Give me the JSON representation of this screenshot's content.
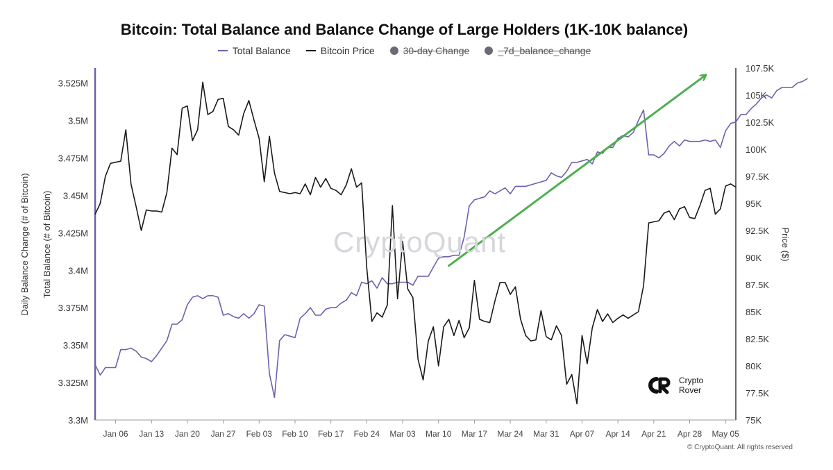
{
  "title": "Bitcoin: Total Balance and Balance Change of Large Holders (1K-10K balance)",
  "legend": [
    {
      "label": "Total Balance",
      "marker": "line",
      "color": "#6f5fb0",
      "active": true
    },
    {
      "label": "Bitcoin Price",
      "marker": "line",
      "color": "#1a1a1a",
      "active": true
    },
    {
      "label": "30-day Change",
      "marker": "dot",
      "color": "#6b6b78",
      "active": false
    },
    {
      "label": "_7d_balance_change",
      "marker": "dot",
      "color": "#6b6b78",
      "active": false
    }
  ],
  "watermark": "CryptoQuant",
  "brand": {
    "name": "Crypto\nRover",
    "icon": "cr-logo-icon"
  },
  "copyright": "© CryptoQuant. All rights reserved",
  "chart_data": {
    "type": "line",
    "x_tick_labels": [
      "Jan 06",
      "Jan 13",
      "Jan 20",
      "Jan 27",
      "Feb 03",
      "Feb 10",
      "Feb 17",
      "Feb 24",
      "Mar 03",
      "Mar 10",
      "Mar 17",
      "Mar 24",
      "Mar 31",
      "Apr 07",
      "Apr 14",
      "Apr 21",
      "Apr 28",
      "May 05"
    ],
    "x_range": [
      "Jan 02",
      "May 07"
    ],
    "y_left": {
      "labels": [
        "Daily Balance Change (# of Bitcoin)",
        "Total Balance (# of Bitcoin)"
      ],
      "ticks": [
        "3.525M",
        "3.5M",
        "3.475M",
        "3.45M",
        "3.425M",
        "3.4M",
        "3.375M",
        "3.35M",
        "3.325M",
        "3.3M"
      ],
      "range": [
        3300000,
        3535000
      ],
      "axis_color": "#6f5fb0"
    },
    "y_right": {
      "label": "Price ($)",
      "ticks": [
        "107.5K",
        "105K",
        "102.5K",
        "100K",
        "97.5K",
        "95K",
        "92.5K",
        "90K",
        "87.5K",
        "85K",
        "82.5K",
        "80K",
        "77.5K",
        "75K"
      ],
      "range": [
        75000,
        107500
      ]
    },
    "grid": false,
    "series": [
      {
        "name": "Total Balance",
        "axis": "left",
        "color": "#6f5fb0",
        "start": "Jan 02",
        "step_days": 1,
        "values": [
          3337000,
          3330000,
          3335000,
          3335000,
          3335000,
          3347000,
          3347000,
          3348000,
          3346000,
          3342000,
          3341000,
          3339000,
          3343000,
          3348000,
          3353000,
          3364000,
          3364000,
          3367000,
          3377000,
          3382000,
          3383000,
          3381000,
          3383000,
          3383000,
          3382000,
          3370000,
          3371000,
          3369000,
          3368000,
          3371000,
          3368000,
          3371000,
          3377000,
          3376000,
          3331000,
          3315000,
          3353000,
          3357000,
          3356000,
          3355000,
          3368000,
          3371000,
          3375000,
          3370000,
          3370000,
          3374000,
          3375000,
          3375000,
          3378000,
          3380000,
          3385000,
          3383000,
          3392000,
          3391000,
          3393000,
          3388000,
          3395000,
          3391000,
          3391000,
          3392000,
          3392000,
          3392000,
          3390000,
          3396000,
          3396000,
          3396000,
          3402000,
          3408000,
          3409000,
          3409000,
          3410000,
          3410000,
          3422000,
          3443000,
          3447000,
          3448000,
          3449000,
          3453000,
          3451000,
          3453000,
          3455000,
          3451000,
          3456000,
          3456000,
          3456000,
          3457000,
          3458000,
          3459000,
          3460000,
          3465000,
          3463000,
          3462000,
          3466000,
          3472000,
          3472000,
          3473000,
          3474000,
          3471000,
          3479000,
          3478000,
          3482000,
          3482000,
          3488000,
          3490000,
          3489000,
          3492000,
          3500000,
          3507000,
          3477000,
          3477000,
          3475000,
          3478000,
          3483000,
          3486000,
          3483000,
          3487000,
          3486000,
          3486000,
          3486000,
          3487000,
          3486000,
          3487000,
          3482000,
          3493000,
          3498000,
          3499000,
          3504000,
          3504000,
          3508000,
          3511000,
          3515000,
          3517000,
          3515000,
          3520000,
          3522000,
          3522000,
          3522000,
          3525000,
          3526000,
          3528000
        ]
      },
      {
        "name": "Bitcoin Price",
        "axis": "right",
        "color": "#1a1a1a",
        "start": "Jan 02",
        "step_days": 1,
        "values": [
          94000,
          95000,
          97500,
          98700,
          98800,
          98900,
          101800,
          96800,
          94700,
          92500,
          94400,
          94300,
          94300,
          94200,
          96000,
          100100,
          99500,
          103800,
          104000,
          100800,
          101800,
          106200,
          103200,
          103500,
          104600,
          104700,
          102100,
          101800,
          101300,
          103300,
          104500,
          102700,
          101000,
          97000,
          101200,
          97800,
          96100,
          96000,
          95900,
          96000,
          95900,
          96800,
          95800,
          97400,
          96500,
          97300,
          96400,
          96200,
          95800,
          96700,
          98200,
          96500,
          96900,
          89000,
          84100,
          84900,
          84500,
          85600,
          94800,
          86200,
          91500,
          87100,
          86300,
          80600,
          78700,
          82300,
          83600,
          80000,
          83600,
          84300,
          82800,
          84200,
          82600,
          83500,
          87900,
          84300,
          84100,
          84000,
          86000,
          87700,
          87700,
          86600,
          87300,
          84300,
          82800,
          82300,
          82400,
          85100,
          82700,
          82400,
          83700,
          82800,
          78300,
          79200,
          76500,
          82800,
          80200,
          83500,
          85200,
          84100,
          84800,
          84000,
          84400,
          84700,
          84400,
          84700,
          85000,
          87400,
          93200,
          93300,
          93400,
          94100,
          94300,
          93500,
          94500,
          94700,
          93700,
          93600,
          94800,
          96200,
          96400,
          94000,
          94500,
          96600,
          96800,
          96500
        ]
      }
    ]
  },
  "annotation": {
    "type": "arrow",
    "color": "#4caf50",
    "from": {
      "date": "Mar 12",
      "value": 3403000
    },
    "to": {
      "date": "May 01",
      "value": 3530000
    }
  }
}
